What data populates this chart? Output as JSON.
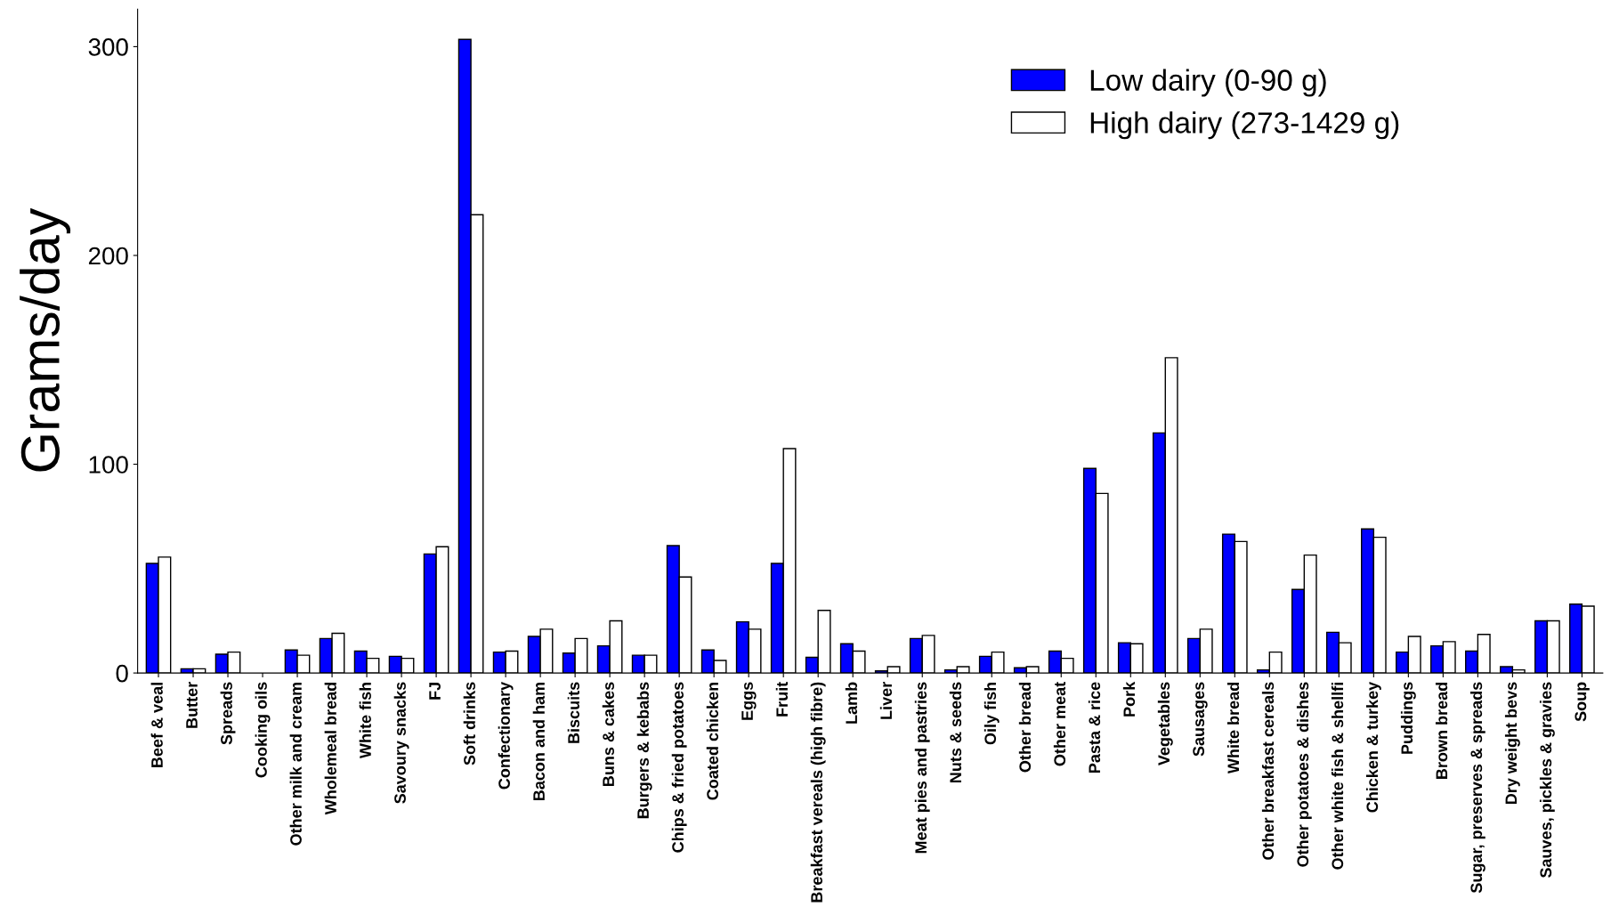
{
  "chart_data": {
    "type": "bar",
    "ylabel": "Grams/day",
    "categories": [
      "Beef & veal",
      "Butter",
      "Spreads",
      "Cooking oils",
      "Other milk and cream",
      "Wholemeal bread",
      "White fish",
      "Savoury snacks",
      "FJ",
      "Soft drinks",
      "Confectionary",
      "Bacon and ham",
      "Biscuits",
      "Buns & cakes",
      "Burgers & kebabs",
      "Chips & fried potatoes",
      "Coated chicken",
      "Eggs",
      "Fruit",
      "Breakfast vereals (high fibre)",
      "Lamb",
      "Liver",
      "Meat pies and pastries",
      "Nuts & seeds",
      "Oily fish",
      "Other bread",
      "Other meat",
      "Pasta & rice",
      "Pork",
      "Vegetables",
      "Sausages",
      "White bread",
      "Other breakfast cereals",
      "Other potatoes & dishes",
      "Other white fish & shellfi",
      "Chicken & turkey",
      "Puddings",
      "Brown bread",
      "Sugar, preserves & spreads",
      "Dry weight bevs",
      "Sauves, pickles & gravies",
      "Soup"
    ],
    "series": [
      {
        "name": "Low dairy (0-90 g)",
        "color": "#0000ff",
        "values": [
          52.5,
          2,
          9,
          null,
          11,
          16.5,
          10.5,
          8,
          57,
          303.5,
          10,
          17.5,
          9.5,
          13,
          8.5,
          61,
          11,
          24.5,
          52.5,
          7.5,
          14,
          1,
          16.5,
          1.5,
          8,
          2.5,
          10.5,
          98,
          14.5,
          115,
          16.5,
          66.5,
          1.5,
          40,
          19.5,
          69,
          10,
          13,
          10.5,
          3,
          25,
          33
        ]
      },
      {
        "name": "High dairy (273-1429 g)",
        "color": "#ffffff",
        "values": [
          55.5,
          2,
          10,
          null,
          8.5,
          19,
          7,
          7,
          60.5,
          219.5,
          10.5,
          21,
          16.5,
          25,
          8.5,
          46,
          6,
          21,
          107.5,
          30,
          10.5,
          3,
          18,
          3,
          10,
          3,
          7,
          86,
          14,
          151,
          21,
          63,
          10,
          56.5,
          14.5,
          65,
          17.5,
          15,
          18.5,
          1.5,
          25,
          32
        ]
      }
    ],
    "ylim": [
      0,
      318
    ],
    "yticks": [
      0,
      100,
      200,
      300
    ],
    "grid": false,
    "legend": "top right"
  }
}
